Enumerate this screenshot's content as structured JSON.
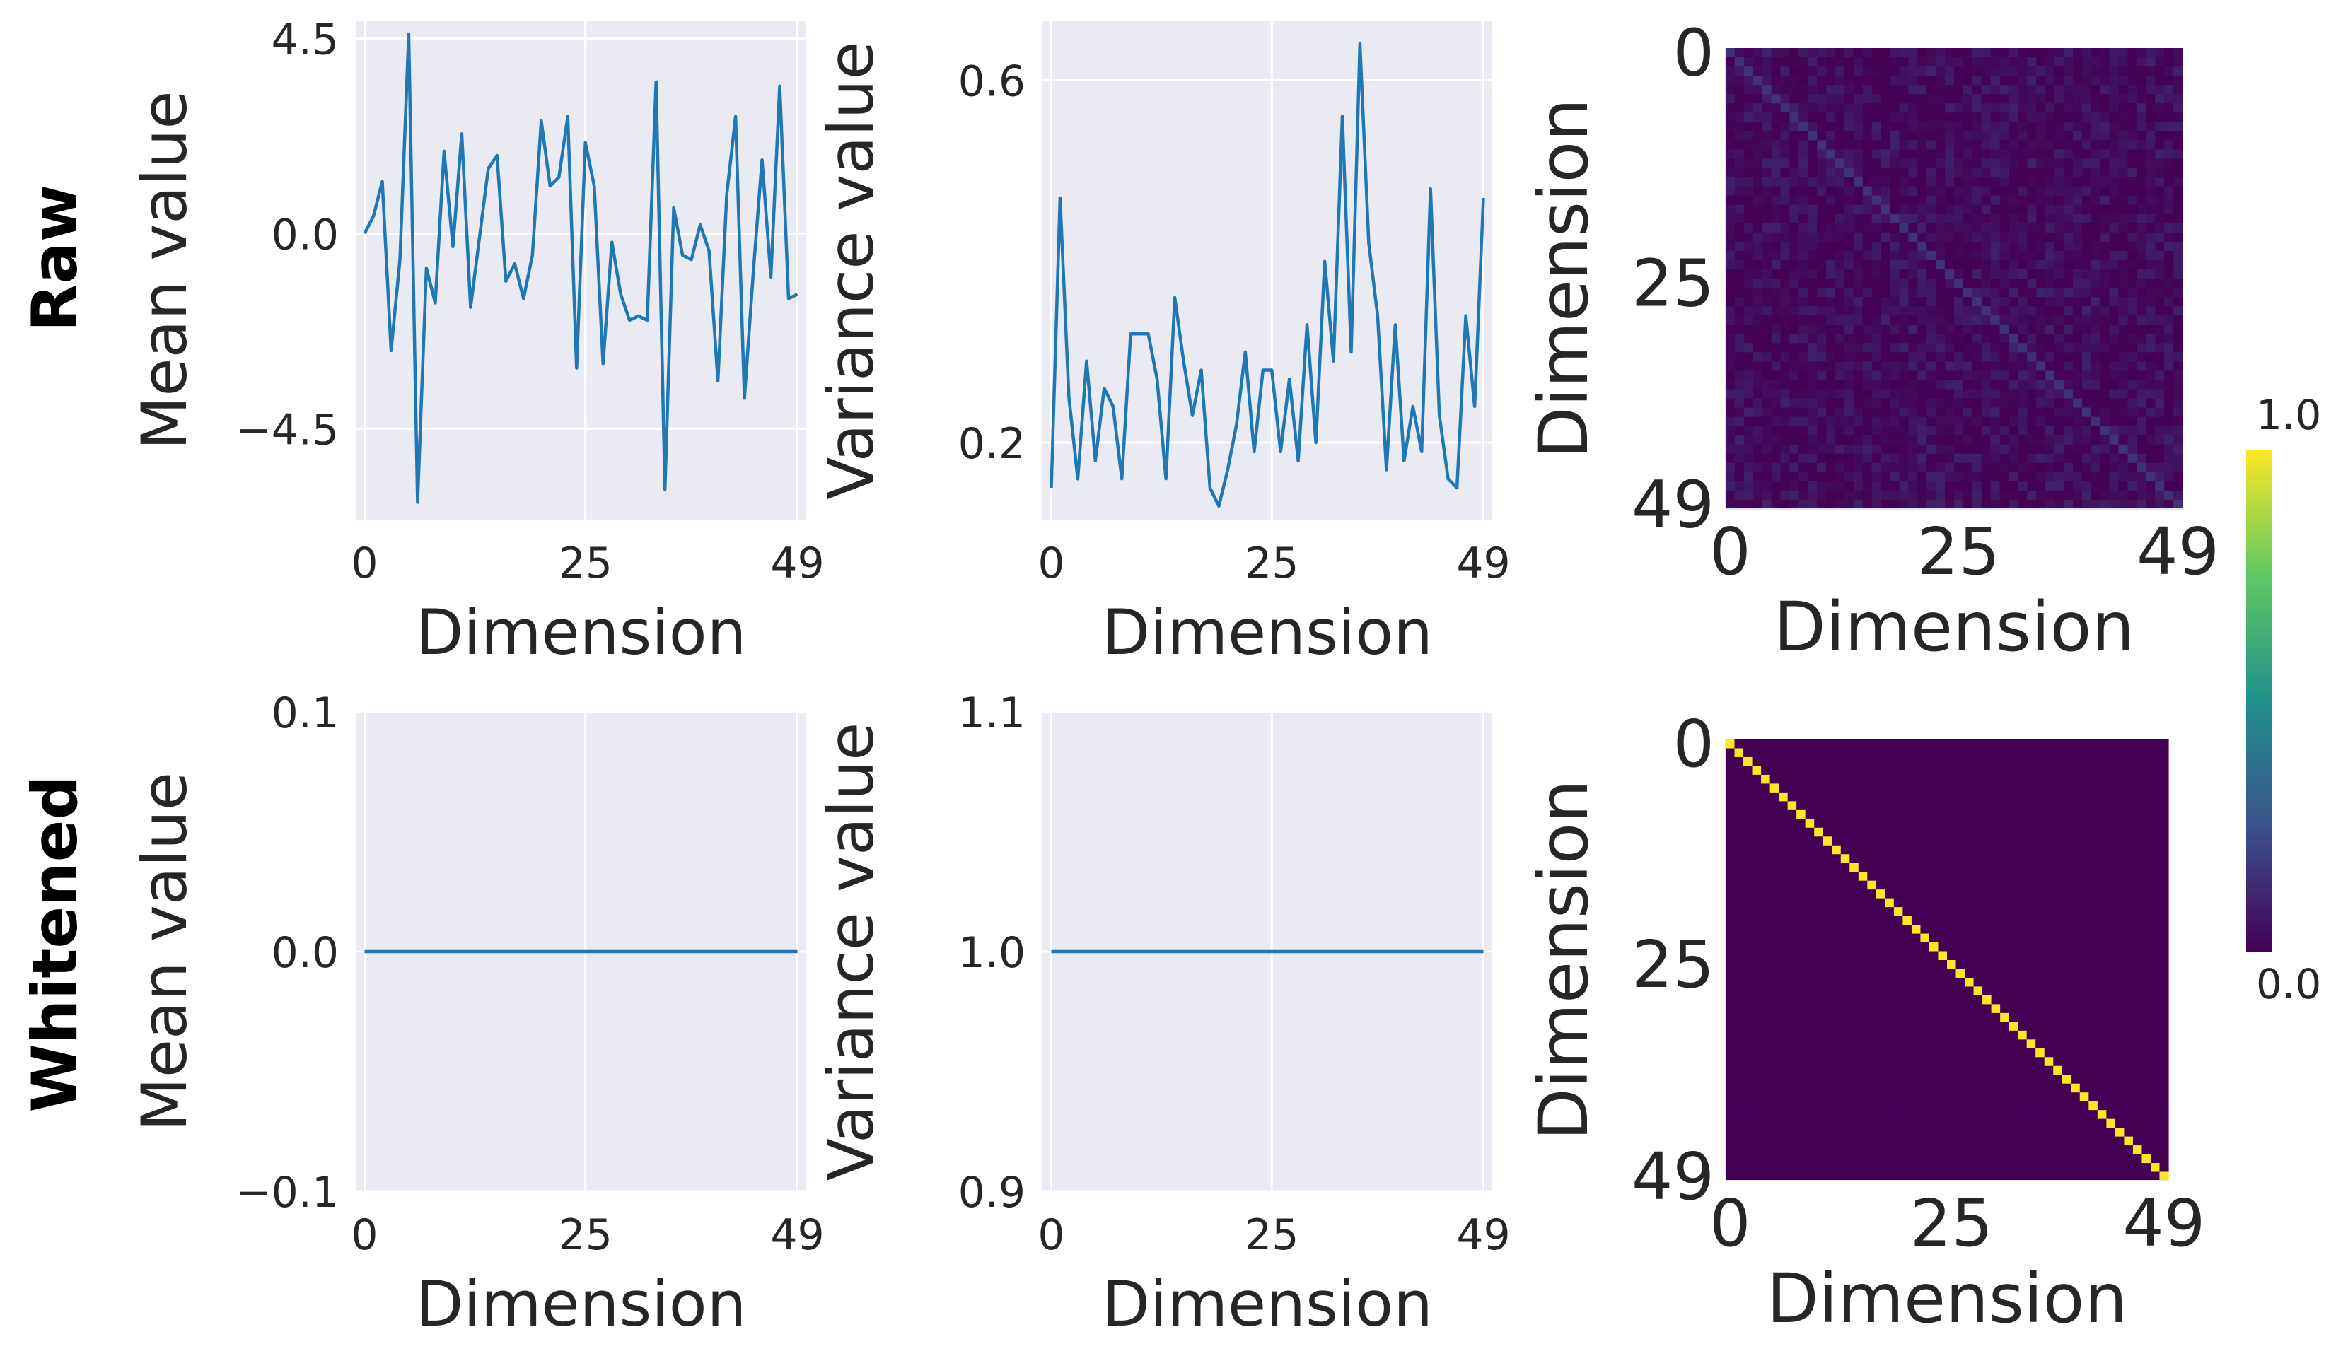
{
  "rows": [
    "Raw",
    "Whitened"
  ],
  "colors": {
    "line": "#1f77b4",
    "panel_bg": "#eaeaf2",
    "grid": "#ffffff"
  },
  "chart_data": [
    {
      "type": "line",
      "row": "Raw",
      "xlabel": "Dimension",
      "ylabel": "Mean value",
      "xlim": [
        -1,
        50
      ],
      "ylim": [
        -6.6,
        4.9
      ],
      "xticks": [
        0,
        25,
        49
      ],
      "yticks": [
        -4.5,
        0.0,
        4.5
      ],
      "ytick_labels": [
        "−4.5",
        "0.0",
        "4.5"
      ],
      "grid": true,
      "x": [
        0,
        1,
        2,
        3,
        4,
        5,
        6,
        7,
        8,
        9,
        10,
        11,
        12,
        13,
        14,
        15,
        16,
        17,
        18,
        19,
        20,
        21,
        22,
        23,
        24,
        25,
        26,
        27,
        28,
        29,
        30,
        31,
        32,
        33,
        34,
        35,
        36,
        37,
        38,
        39,
        40,
        41,
        42,
        43,
        44,
        45,
        46,
        47,
        48,
        49
      ],
      "values": [
        0.0,
        0.4,
        1.2,
        -2.7,
        -0.6,
        4.6,
        -6.2,
        -0.8,
        -1.6,
        1.9,
        -0.3,
        2.3,
        -1.7,
        -0.1,
        1.5,
        1.8,
        -1.1,
        -0.7,
        -1.5,
        -0.5,
        2.6,
        1.1,
        1.3,
        2.7,
        -3.1,
        2.1,
        1.1,
        -3.0,
        -0.2,
        -1.4,
        -2.0,
        -1.9,
        -2.0,
        3.5,
        -5.9,
        0.6,
        -0.5,
        -0.6,
        0.2,
        -0.4,
        -3.4,
        0.9,
        2.7,
        -3.8,
        -0.9,
        1.7,
        -1.0,
        3.4,
        -1.5,
        -1.4
      ]
    },
    {
      "type": "line",
      "row": "Raw",
      "xlabel": "Dimension",
      "ylabel": "Variance value",
      "xlim": [
        -1,
        50
      ],
      "ylim": [
        0.115,
        0.665
      ],
      "xticks": [
        0,
        25,
        49
      ],
      "yticks": [
        0.2,
        0.6
      ],
      "ytick_labels": [
        "0.2",
        "0.6"
      ],
      "grid": true,
      "x": [
        0,
        1,
        2,
        3,
        4,
        5,
        6,
        7,
        8,
        9,
        10,
        11,
        12,
        13,
        14,
        15,
        16,
        17,
        18,
        19,
        20,
        21,
        22,
        23,
        24,
        25,
        26,
        27,
        28,
        29,
        30,
        31,
        32,
        33,
        34,
        35,
        36,
        37,
        38,
        39,
        40,
        41,
        42,
        43,
        44,
        45,
        46,
        47,
        48,
        49
      ],
      "values": [
        0.15,
        0.47,
        0.25,
        0.16,
        0.29,
        0.18,
        0.26,
        0.24,
        0.16,
        0.32,
        0.32,
        0.32,
        0.27,
        0.16,
        0.36,
        0.29,
        0.23,
        0.28,
        0.15,
        0.13,
        0.17,
        0.22,
        0.3,
        0.19,
        0.28,
        0.28,
        0.19,
        0.27,
        0.18,
        0.33,
        0.2,
        0.4,
        0.29,
        0.56,
        0.3,
        0.64,
        0.42,
        0.34,
        0.17,
        0.33,
        0.18,
        0.24,
        0.19,
        0.48,
        0.23,
        0.16,
        0.15,
        0.34,
        0.24,
        0.47
      ]
    },
    {
      "type": "heatmap",
      "row": "Raw",
      "xlabel": "Dimension",
      "ylabel": "Dimension",
      "xticks": [
        0,
        25,
        49
      ],
      "yticks": [
        0,
        25,
        49
      ],
      "size": 50,
      "vmin": 0.0,
      "vmax": 1.0,
      "diagonal": 0.15,
      "off_diagonal_max": 0.1
    },
    {
      "type": "line",
      "row": "Whitened",
      "xlabel": "Dimension",
      "ylabel": "Mean value",
      "xlim": [
        -1,
        50
      ],
      "ylim": [
        -0.1,
        0.1
      ],
      "xticks": [
        0,
        25,
        49
      ],
      "yticks": [
        -0.1,
        0.0,
        0.1
      ],
      "ytick_labels": [
        "−0.1",
        "0.0",
        "0.1"
      ],
      "grid": true,
      "x": [
        0,
        1,
        2,
        3,
        4,
        5,
        6,
        7,
        8,
        9,
        10,
        11,
        12,
        13,
        14,
        15,
        16,
        17,
        18,
        19,
        20,
        21,
        22,
        23,
        24,
        25,
        26,
        27,
        28,
        29,
        30,
        31,
        32,
        33,
        34,
        35,
        36,
        37,
        38,
        39,
        40,
        41,
        42,
        43,
        44,
        45,
        46,
        47,
        48,
        49
      ],
      "values": [
        0,
        0,
        0,
        0,
        0,
        0,
        0,
        0,
        0,
        0,
        0,
        0,
        0,
        0,
        0,
        0,
        0,
        0,
        0,
        0,
        0,
        0,
        0,
        0,
        0,
        0,
        0,
        0,
        0,
        0,
        0,
        0,
        0,
        0,
        0,
        0,
        0,
        0,
        0,
        0,
        0,
        0,
        0,
        0,
        0,
        0,
        0,
        0,
        0,
        0
      ]
    },
    {
      "type": "line",
      "row": "Whitened",
      "xlabel": "Dimension",
      "ylabel": "Variance value",
      "xlim": [
        -1,
        50
      ],
      "ylim": [
        0.9,
        1.1
      ],
      "xticks": [
        0,
        25,
        49
      ],
      "yticks": [
        0.9,
        1.0,
        1.1
      ],
      "ytick_labels": [
        "0.9",
        "1.0",
        "1.1"
      ],
      "grid": true,
      "x": [
        0,
        1,
        2,
        3,
        4,
        5,
        6,
        7,
        8,
        9,
        10,
        11,
        12,
        13,
        14,
        15,
        16,
        17,
        18,
        19,
        20,
        21,
        22,
        23,
        24,
        25,
        26,
        27,
        28,
        29,
        30,
        31,
        32,
        33,
        34,
        35,
        36,
        37,
        38,
        39,
        40,
        41,
        42,
        43,
        44,
        45,
        46,
        47,
        48,
        49
      ],
      "values": [
        1,
        1,
        1,
        1,
        1,
        1,
        1,
        1,
        1,
        1,
        1,
        1,
        1,
        1,
        1,
        1,
        1,
        1,
        1,
        1,
        1,
        1,
        1,
        1,
        1,
        1,
        1,
        1,
        1,
        1,
        1,
        1,
        1,
        1,
        1,
        1,
        1,
        1,
        1,
        1,
        1,
        1,
        1,
        1,
        1,
        1,
        1,
        1,
        1,
        1
      ]
    },
    {
      "type": "heatmap",
      "row": "Whitened",
      "xlabel": "Dimension",
      "ylabel": "Dimension",
      "xticks": [
        0,
        25,
        49
      ],
      "yticks": [
        0,
        25,
        49
      ],
      "size": 50,
      "vmin": 0.0,
      "vmax": 1.0,
      "diagonal": 1.0,
      "off_diagonal_max": 0.0
    }
  ],
  "colorbar": {
    "tick_labels": [
      "0.0",
      "1.0"
    ],
    "colormap": "viridis"
  }
}
